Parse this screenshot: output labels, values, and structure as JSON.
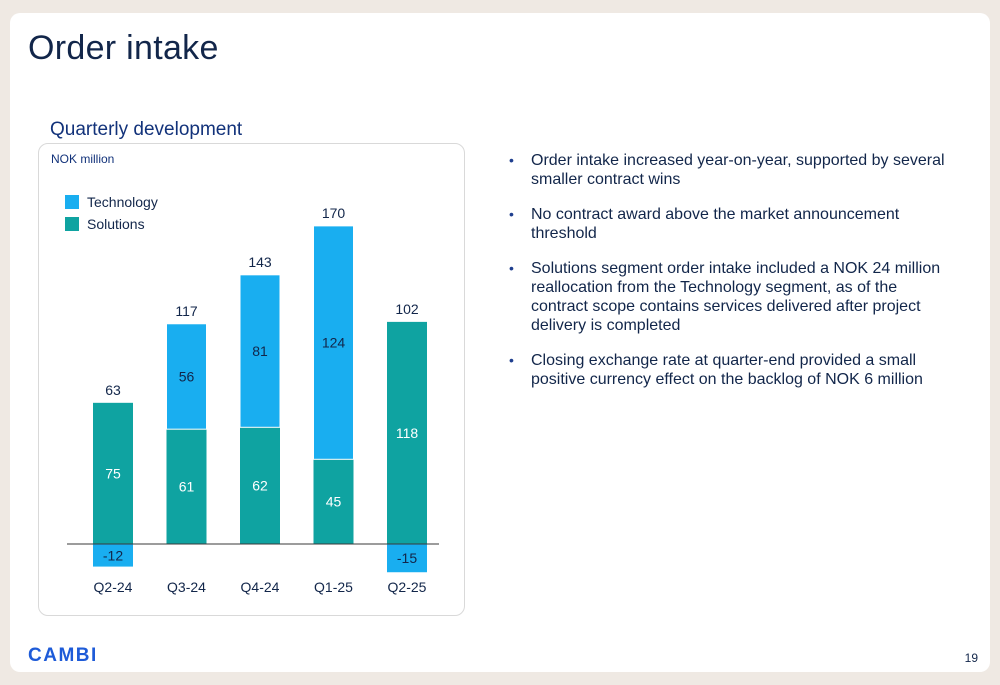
{
  "slide": {
    "title": "Order intake",
    "page_number": "19",
    "logo_text": "CAMBI"
  },
  "chart_heading": "Quarterly development",
  "bullets": [
    "Order intake increased year-on-year, supported by several smaller contract wins",
    "No contract award above the market announcement threshold",
    "Solutions segment order intake included a NOK 24 million reallocation from the Technology segment, as of the contract scope contains services delivered after project delivery is completed",
    "Closing exchange rate at quarter-end provided a small positive currency effect on the backlog of NOK 6 million"
  ],
  "colors": {
    "technology": "#19aef0",
    "solutions": "#0fa3a1",
    "text": "#12264a",
    "accent": "#12327a"
  },
  "chart_data": {
    "type": "bar",
    "stacked": true,
    "unit_label": "NOK million",
    "categories": [
      "Q2-24",
      "Q3-24",
      "Q4-24",
      "Q1-25",
      "Q2-25"
    ],
    "series": [
      {
        "name": "Solutions",
        "values": [
          75,
          61,
          62,
          45,
          118
        ]
      },
      {
        "name": "Technology",
        "values": [
          -12,
          56,
          81,
          124,
          -15
        ]
      }
    ],
    "totals": [
      63,
      117,
      143,
      170,
      102
    ],
    "legend": [
      "Technology",
      "Solutions"
    ],
    "legend_position": "top-left",
    "grid": false
  }
}
